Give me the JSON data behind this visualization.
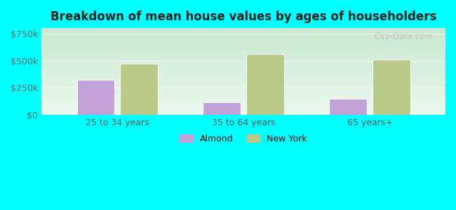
{
  "title": "Breakdown of mean house values by ages of householders",
  "categories": [
    "25 to 34 years",
    "35 to 64 years",
    "65 years+"
  ],
  "almond_values": [
    325000,
    115000,
    150000
  ],
  "newyork_values": [
    470000,
    560000,
    510000
  ],
  "almond_color": "#c2a0d8",
  "newyork_color": "#b8c98a",
  "background_color": "#00ffff",
  "yticks": [
    0,
    250000,
    500000,
    750000
  ],
  "ytick_labels": [
    "$0",
    "$250k",
    "$500k",
    "$750k"
  ],
  "ylim": [
    0,
    800000
  ],
  "bar_width": 0.3,
  "legend_labels": [
    "Almond",
    "New York"
  ],
  "watermark": "City-Data.com",
  "grad_top": "#c8e8d0",
  "grad_bottom": "#eaf8ee"
}
